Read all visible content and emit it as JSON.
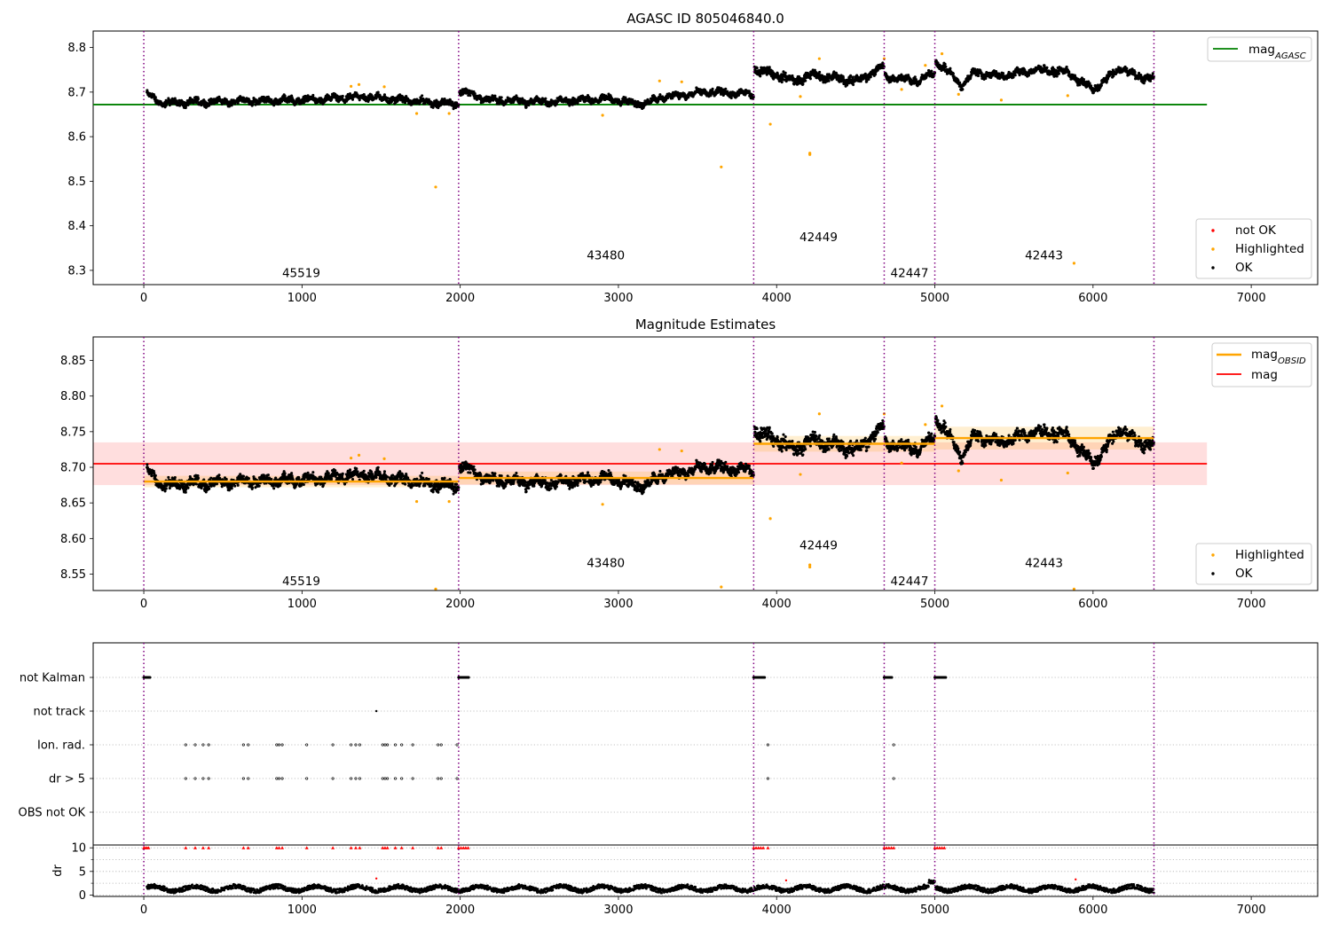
{
  "figure": {
    "title_top": "AGASC ID 805046840.0",
    "title_mid": "Magnitude Estimates"
  },
  "chart_data": [
    {
      "type": "scatter",
      "title": "AGASC ID 805046840.0",
      "xlim": [
        -320,
        7420
      ],
      "ylim": [
        8.268,
        8.837
      ],
      "xticks": [
        0,
        1000,
        2000,
        3000,
        4000,
        5000,
        6000,
        7000
      ],
      "yticks": [
        8.3,
        8.4,
        8.5,
        8.6,
        8.7,
        8.8
      ],
      "grid": false,
      "legend_upper": {
        "placement": "top-right",
        "entries": [
          "mag$_{AGASC}$"
        ]
      },
      "legend_lower": {
        "placement": "bottom-right",
        "entries": [
          "not OK",
          "Highlighted",
          "OK"
        ]
      },
      "hlines": [
        {
          "name": "mag_AGASC",
          "y": 8.672,
          "x": [
            -320,
            6720
          ],
          "color": "#008000"
        }
      ],
      "obs_boundaries": [
        0,
        1990,
        3855,
        4680,
        5000,
        6385
      ],
      "obsid_labels": [
        {
          "text": "45519",
          "x": 995,
          "y": 8.295
        },
        {
          "text": "43480",
          "x": 2920,
          "y": 8.335
        },
        {
          "text": "42449",
          "x": 4265,
          "y": 8.375
        },
        {
          "text": "42447",
          "x": 4840,
          "y": 8.295
        },
        {
          "text": "42443",
          "x": 5690,
          "y": 8.335
        }
      ],
      "segments": [
        {
          "x": [
            20,
            1990
          ],
          "keyframes": [
            [
              0,
              8.695
            ],
            [
              0.05,
              8.675
            ],
            [
              0.3,
              8.68
            ],
            [
              0.55,
              8.683
            ],
            [
              0.7,
              8.69
            ],
            [
              0.82,
              8.682
            ],
            [
              1,
              8.672
            ]
          ],
          "noise": 0.009
        },
        {
          "x": [
            1995,
            3855
          ],
          "keyframes": [
            [
              0,
              8.705
            ],
            [
              0.1,
              8.682
            ],
            [
              0.3,
              8.678
            ],
            [
              0.5,
              8.685
            ],
            [
              0.62,
              8.673
            ],
            [
              0.7,
              8.69
            ],
            [
              0.85,
              8.7
            ],
            [
              1,
              8.695
            ]
          ],
          "noise": 0.009
        },
        {
          "x": [
            3860,
            4680
          ],
          "keyframes": [
            [
              0,
              8.75
            ],
            [
              0.15,
              8.742
            ],
            [
              0.3,
              8.725
            ],
            [
              0.45,
              8.738
            ],
            [
              0.6,
              8.732
            ],
            [
              0.8,
              8.725
            ],
            [
              1,
              8.76
            ]
          ],
          "noise": 0.012
        },
        {
          "x": [
            4685,
            5000
          ],
          "keyframes": [
            [
              0,
              8.735
            ],
            [
              0.3,
              8.73
            ],
            [
              0.7,
              8.725
            ],
            [
              1,
              8.745
            ]
          ],
          "noise": 0.01
        },
        {
          "x": [
            5005,
            6385
          ],
          "keyframes": [
            [
              0,
              8.77
            ],
            [
              0.08,
              8.735
            ],
            [
              0.12,
              8.715
            ],
            [
              0.18,
              8.745
            ],
            [
              0.3,
              8.735
            ],
            [
              0.45,
              8.75
            ],
            [
              0.6,
              8.745
            ],
            [
              0.72,
              8.705
            ],
            [
              0.85,
              8.755
            ],
            [
              0.92,
              8.735
            ],
            [
              1,
              8.732
            ]
          ],
          "noise": 0.01
        }
      ],
      "highlighted": [
        [
          1310,
          8.713
        ],
        [
          1360,
          8.717
        ],
        [
          1520,
          8.712
        ],
        [
          1725,
          8.652
        ],
        [
          1845,
          8.487
        ],
        [
          1930,
          8.652
        ],
        [
          2900,
          8.648
        ],
        [
          3260,
          8.725
        ],
        [
          3400,
          8.723
        ],
        [
          3650,
          8.532
        ],
        [
          3960,
          8.628
        ],
        [
          4150,
          8.69
        ],
        [
          4210,
          8.56
        ],
        [
          4210,
          8.563
        ],
        [
          4270,
          8.775
        ],
        [
          4680,
          8.775
        ],
        [
          4790,
          8.706
        ],
        [
          4940,
          8.76
        ],
        [
          5045,
          8.786
        ],
        [
          5150,
          8.695
        ],
        [
          5420,
          8.682
        ],
        [
          5840,
          8.692
        ],
        [
          5880,
          8.316
        ]
      ],
      "not_ok": []
    },
    {
      "type": "scatter",
      "title": "Magnitude Estimates",
      "xlim": [
        -320,
        7420
      ],
      "ylim": [
        8.527,
        8.883
      ],
      "xticks": [
        0,
        1000,
        2000,
        3000,
        4000,
        5000,
        6000,
        7000
      ],
      "yticks": [
        8.55,
        8.6,
        8.65,
        8.7,
        8.75,
        8.8,
        8.85
      ],
      "grid": false,
      "legend_upper": {
        "placement": "top-right",
        "entries": [
          "mag$_{OBSID}$",
          "mag"
        ]
      },
      "legend_lower": {
        "placement": "bottom-right",
        "entries": [
          "Highlighted",
          "OK"
        ]
      },
      "hlines": [
        {
          "name": "mag",
          "y": 8.705,
          "x": [
            -320,
            6720
          ],
          "color": "#ff0000",
          "band": [
            8.675,
            8.735
          ]
        }
      ],
      "obsid_means": [
        {
          "x": [
            0,
            1990
          ],
          "y": 8.68,
          "band": [
            8.672,
            8.688
          ]
        },
        {
          "x": [
            1990,
            3855
          ],
          "y": 8.685,
          "band": [
            8.676,
            8.694
          ]
        },
        {
          "x": [
            3855,
            4680
          ],
          "y": 8.733,
          "band": [
            8.722,
            8.744
          ]
        },
        {
          "x": [
            4680,
            5000
          ],
          "y": 8.733,
          "band": [
            8.722,
            8.744
          ]
        },
        {
          "x": [
            5000,
            6385
          ],
          "y": 8.741,
          "band": [
            8.725,
            8.757
          ]
        }
      ],
      "obs_boundaries": [
        0,
        1990,
        3855,
        4680,
        5000,
        6385
      ],
      "obsid_labels": [
        {
          "text": "45519",
          "x": 995,
          "y": 8.541
        },
        {
          "text": "43480",
          "x": 2920,
          "y": 8.566
        },
        {
          "text": "42449",
          "x": 4265,
          "y": 8.591
        },
        {
          "text": "42447",
          "x": 4840,
          "y": 8.541
        },
        {
          "text": "42443",
          "x": 5690,
          "y": 8.566
        }
      ],
      "segments": "same as panel 1",
      "highlighted": [
        [
          1310,
          8.713
        ],
        [
          1360,
          8.717
        ],
        [
          1520,
          8.712
        ],
        [
          1725,
          8.652
        ],
        [
          1845,
          8.529
        ],
        [
          1930,
          8.652
        ],
        [
          2900,
          8.648
        ],
        [
          3260,
          8.725
        ],
        [
          3400,
          8.723
        ],
        [
          3650,
          8.532
        ],
        [
          3960,
          8.628
        ],
        [
          4150,
          8.69
        ],
        [
          4210,
          8.56
        ],
        [
          4210,
          8.563
        ],
        [
          4270,
          8.775
        ],
        [
          4680,
          8.775
        ],
        [
          4790,
          8.706
        ],
        [
          4940,
          8.76
        ],
        [
          5045,
          8.786
        ],
        [
          5150,
          8.695
        ],
        [
          5420,
          8.682
        ],
        [
          5840,
          8.692
        ],
        [
          5880,
          8.529
        ]
      ]
    },
    {
      "type": "scatter",
      "title": "",
      "xlim": [
        -320,
        7420
      ],
      "categories": [
        "not Kalman",
        "not track",
        "Ion. rad.",
        "dr > 5",
        "OBS not OK"
      ],
      "flag_clusters": {
        "not Kalman": [
          [
            0,
            40
          ],
          [
            1990,
            2055
          ],
          [
            3855,
            3925
          ],
          [
            4680,
            4730
          ],
          [
            5000,
            5070
          ]
        ],
        "ion_dr_points": [
          265,
          325,
          375,
          410,
          630,
          660,
          840,
          855,
          875,
          1030,
          1195,
          1310,
          1340,
          1365,
          1510,
          1525,
          1540,
          1590,
          1630,
          1700,
          1860,
          1880,
          1980,
          3945,
          4740
        ],
        "not track": [
          1470
        ]
      },
      "grid": "y dotted"
    },
    {
      "type": "scatter",
      "title": "",
      "ylabel": "dr",
      "xlim": [
        -320,
        7420
      ],
      "ylim": [
        -0.3,
        10.6
      ],
      "xticks": [
        0,
        1000,
        2000,
        3000,
        4000,
        5000,
        6000,
        7000
      ],
      "yticks": [
        0,
        5,
        10
      ],
      "grid": "y dotted",
      "dr_cap": 10,
      "red_capped_x": [
        0,
        10,
        20,
        30,
        265,
        325,
        375,
        410,
        630,
        660,
        840,
        855,
        875,
        1030,
        1195,
        1310,
        1340,
        1365,
        1510,
        1525,
        1540,
        1590,
        1630,
        1700,
        1860,
        1880,
        1990,
        2005,
        2020,
        2035,
        2050,
        3855,
        3870,
        3885,
        3900,
        3915,
        3945,
        4680,
        4695,
        4710,
        4725,
        4740,
        5000,
        5015,
        5030,
        5045,
        5060
      ],
      "red_points": [
        [
          1470,
          3.5
        ],
        [
          4060,
          3.1
        ],
        [
          5890,
          3.3
        ]
      ]
    }
  ]
}
